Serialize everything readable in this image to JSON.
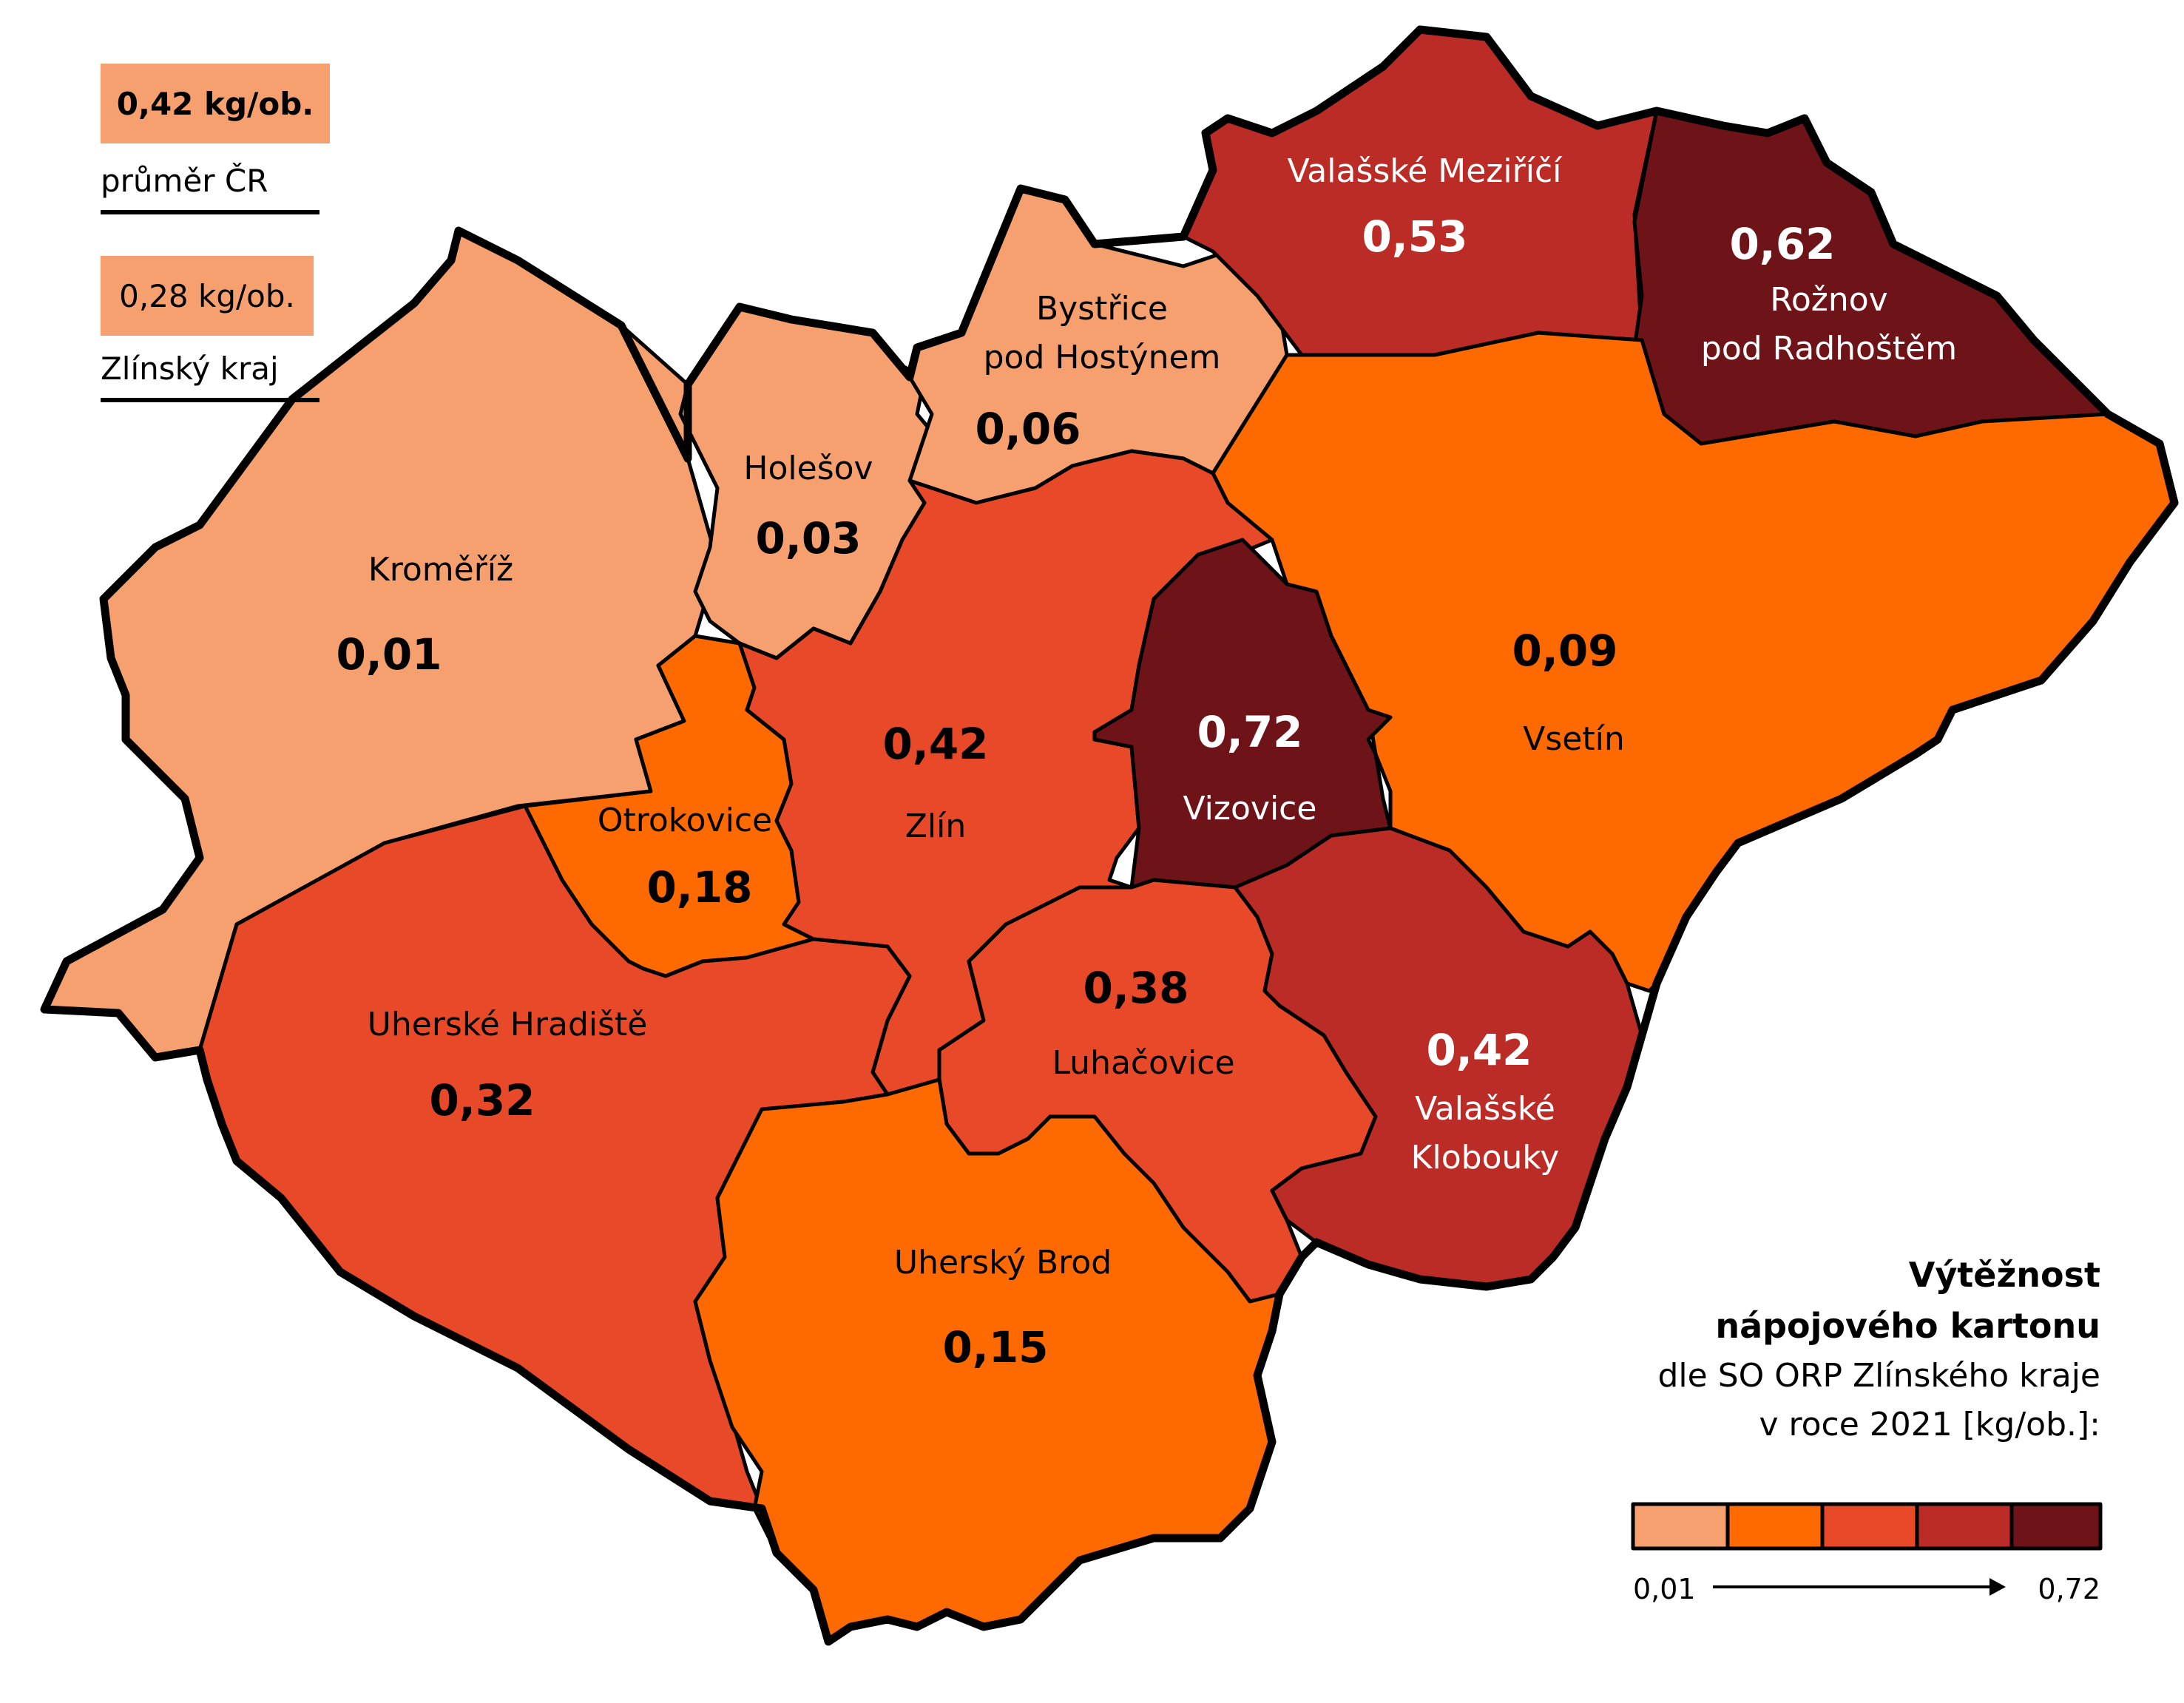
{
  "national_average": {
    "value": "0,42 kg/ob.",
    "label": "průměr ČR"
  },
  "regional_average": {
    "value": "0,28 kg/ob.",
    "label": "Zlínský kraj"
  },
  "legend": {
    "title_lines": [
      "Výtěžnost",
      "nápojového kartonu"
    ],
    "subtitle_lines": [
      "dle SO ORP Zlínského kraje",
      "v roce 2021 [kg/ob.]:"
    ],
    "min_label": "0,01",
    "max_label": "0,72",
    "scale_colors": [
      "#f5a06e",
      "#ff6a00",
      "#e84a29",
      "#bb2c27",
      "#6e1419"
    ]
  },
  "regions": [
    {
      "name": "Kroměříž",
      "value": "0,01",
      "color": "#f5a06e"
    },
    {
      "name": "Holešov",
      "value": "0,03",
      "color": "#f5a06e"
    },
    {
      "name": "Bystřice pod Hostýnem",
      "name_lines": [
        "Bystřice",
        "pod Hostýnem"
      ],
      "value": "0,06",
      "color": "#f5a06e"
    },
    {
      "name": "Valašské Meziříčí",
      "value": "0,53",
      "color": "#bb2c27"
    },
    {
      "name": "Rožnov pod Radhoštěm",
      "name_lines": [
        "Rožnov",
        "pod Radhoštěm"
      ],
      "value": "0,62",
      "color": "#6e1419"
    },
    {
      "name": "Vsetín",
      "value": "0,09",
      "color": "#ff6a00"
    },
    {
      "name": "Otrokovice",
      "value": "0,18",
      "color": "#ff6a00"
    },
    {
      "name": "Zlín",
      "value": "0,42",
      "color": "#e84a29"
    },
    {
      "name": "Vizovice",
      "value": "0,72",
      "color": "#6e1419"
    },
    {
      "name": "Uherské Hradiště",
      "value": "0,32",
      "color": "#e84a29"
    },
    {
      "name": "Luhačovice",
      "value": "0,38",
      "color": "#e84a29"
    },
    {
      "name": "Valašské Klobouky",
      "name_lines": [
        "Valašské",
        "Klobouky"
      ],
      "value": "0,42",
      "color": "#bb2c27"
    },
    {
      "name": "Uherský Brod",
      "value": "0,15",
      "color": "#ff6a00"
    }
  ]
}
